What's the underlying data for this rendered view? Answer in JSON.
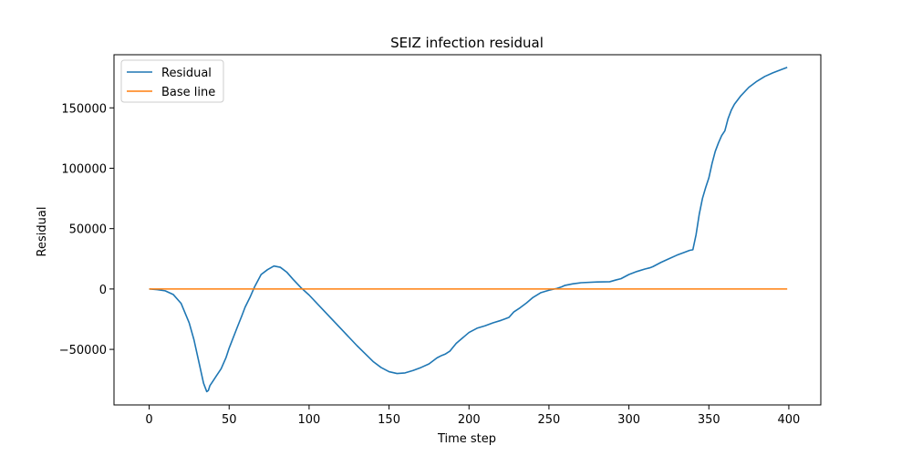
{
  "chart_data": {
    "type": "line",
    "title": "SEIZ infection residual",
    "xlabel": "Time step",
    "ylabel": "Residual",
    "xlim": [
      -22,
      420
    ],
    "ylim": [
      -96000,
      194000
    ],
    "xticks": [
      0,
      50,
      100,
      150,
      200,
      250,
      300,
      350,
      400
    ],
    "yticks": [
      -50000,
      0,
      50000,
      100000,
      150000
    ],
    "ytick_labels": [
      "−50000",
      "0",
      "50000",
      "100000",
      "150000"
    ],
    "grid": false,
    "legend": "top-left",
    "series": [
      {
        "name": "Residual",
        "color": "#1f77b4",
        "x": [
          0,
          5,
          10,
          15,
          20,
          25,
          28,
          31,
          34,
          36,
          37,
          38,
          40,
          42,
          45,
          48,
          50,
          55,
          58,
          60,
          63,
          66,
          70,
          74,
          78,
          82,
          86,
          90,
          95,
          100,
          110,
          120,
          130,
          140,
          145,
          150,
          155,
          160,
          165,
          170,
          175,
          180,
          183,
          185,
          188,
          192,
          196,
          200,
          205,
          210,
          215,
          220,
          222,
          225,
          228,
          232,
          236,
          240,
          245,
          250,
          255,
          258,
          260,
          265,
          270,
          280,
          288,
          292,
          295,
          300,
          305,
          310,
          313,
          315,
          320,
          325,
          330,
          335,
          338,
          340,
          342,
          344,
          346,
          348,
          350,
          352,
          354,
          356,
          358,
          360,
          362,
          364,
          366,
          370,
          375,
          380,
          385,
          390,
          395,
          399
        ],
        "y": [
          0,
          -500,
          -1500,
          -4500,
          -12000,
          -28000,
          -42000,
          -60000,
          -78000,
          -85000,
          -84000,
          -80000,
          -76000,
          -72000,
          -66000,
          -57000,
          -49000,
          -32000,
          -22000,
          -15000,
          -7000,
          2000,
          12000,
          16000,
          19000,
          18000,
          14000,
          8000,
          1000,
          -5000,
          -19000,
          -33000,
          -47000,
          -60000,
          -65000,
          -68500,
          -70000,
          -69500,
          -67500,
          -65000,
          -62000,
          -57000,
          -55000,
          -54000,
          -51500,
          -45000,
          -40500,
          -36000,
          -32500,
          -30500,
          -28000,
          -26000,
          -25000,
          -23500,
          -19000,
          -15500,
          -11500,
          -7000,
          -3000,
          -1000,
          500,
          1800,
          3000,
          4300,
          5200,
          5800,
          6000,
          7500,
          8500,
          12000,
          14500,
          16500,
          17500,
          18500,
          22000,
          25000,
          28000,
          30500,
          32000,
          32500,
          45000,
          62000,
          75000,
          84000,
          92000,
          104000,
          114000,
          121000,
          127000,
          131000,
          141000,
          148000,
          153000,
          160000,
          167000,
          172000,
          176000,
          179000,
          181500,
          183500
        ]
      },
      {
        "name": "Base line",
        "color": "#ff7f0e",
        "x": [
          0,
          399
        ],
        "y": [
          0,
          0
        ]
      }
    ]
  }
}
